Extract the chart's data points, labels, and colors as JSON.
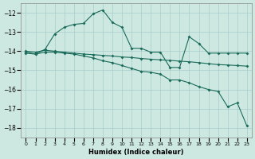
{
  "xlabel": "Humidex (Indice chaleur)",
  "ylabel": "",
  "bg_color": "#cce8e0",
  "grid_color": "#aacccc",
  "line_color": "#1a6b5a",
  "xlim": [
    -0.5,
    23.5
  ],
  "ylim": [
    -18.5,
    -11.5
  ],
  "yticks": [
    -18,
    -17,
    -16,
    -15,
    -14,
    -13,
    -12
  ],
  "xticks": [
    0,
    1,
    2,
    3,
    4,
    5,
    6,
    7,
    8,
    9,
    10,
    11,
    12,
    13,
    14,
    15,
    16,
    17,
    18,
    19,
    20,
    21,
    22,
    23
  ],
  "line1_x": [
    0,
    1,
    2,
    3,
    4,
    5,
    6,
    7,
    8,
    9,
    10,
    11,
    12,
    13,
    14,
    15,
    16,
    17,
    18,
    19,
    20,
    21,
    22,
    23
  ],
  "line1_y": [
    -14.1,
    -14.15,
    -13.9,
    -13.1,
    -12.75,
    -12.6,
    -12.55,
    -12.05,
    -11.85,
    -12.5,
    -12.75,
    -13.85,
    -13.85,
    -14.05,
    -14.05,
    -14.85,
    -14.85,
    -13.25,
    -13.6,
    -14.1,
    -14.1,
    -14.1,
    -14.1,
    -14.1
  ],
  "line2_x": [
    0,
    1,
    2,
    3,
    4,
    5,
    6,
    7,
    8,
    9,
    10,
    11,
    12,
    13,
    14,
    15,
    16,
    17,
    18,
    19,
    20,
    21,
    22,
    23
  ],
  "line2_y": [
    -14.0,
    -14.05,
    -13.95,
    -14.0,
    -14.05,
    -14.1,
    -14.15,
    -14.18,
    -14.22,
    -14.25,
    -14.3,
    -14.33,
    -14.38,
    -14.42,
    -14.45,
    -14.48,
    -14.52,
    -14.55,
    -14.6,
    -14.65,
    -14.7,
    -14.72,
    -14.75,
    -14.78
  ],
  "line3_x": [
    0,
    1,
    2,
    3,
    4,
    5,
    6,
    7,
    8,
    9,
    10,
    11,
    12,
    13,
    14,
    15,
    16,
    17,
    18,
    19,
    20,
    21,
    22,
    23
  ],
  "line3_y": [
    -14.05,
    -14.15,
    -14.05,
    -14.05,
    -14.1,
    -14.15,
    -14.25,
    -14.35,
    -14.5,
    -14.6,
    -14.75,
    -14.9,
    -15.05,
    -15.1,
    -15.2,
    -15.5,
    -15.5,
    -15.65,
    -15.85,
    -16.0,
    -16.1,
    -16.9,
    -16.7,
    -17.9
  ]
}
